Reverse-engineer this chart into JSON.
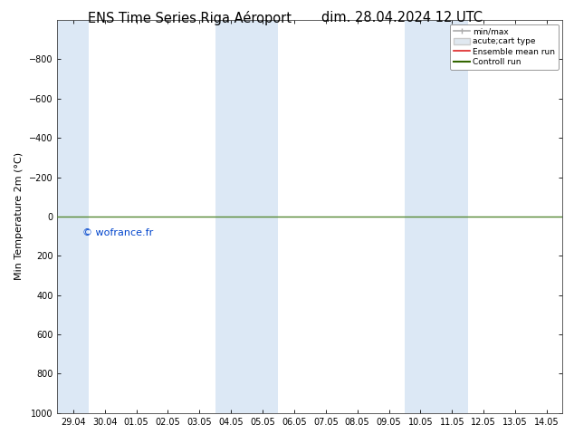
{
  "title_left": "ENS Time Series Riga Aéroport",
  "title_right": "dim. 28.04.2024 12 UTC",
  "ylabel": "Min Temperature 2m (°C)",
  "ylim_top": -1000,
  "ylim_bottom": 1000,
  "yticks": [
    -800,
    -600,
    -400,
    -200,
    0,
    200,
    400,
    600,
    800,
    1000
  ],
  "xtick_labels": [
    "29.04",
    "30.04",
    "01.05",
    "02.05",
    "03.05",
    "04.05",
    "05.05",
    "06.05",
    "07.05",
    "08.05",
    "09.05",
    "10.05",
    "11.05",
    "12.05",
    "13.05",
    "14.05"
  ],
  "xtick_positions": [
    0,
    1,
    2,
    3,
    4,
    5,
    6,
    7,
    8,
    9,
    10,
    11,
    12,
    13,
    14,
    15
  ],
  "xlim": [
    0,
    15
  ],
  "background_color": "#ffffff",
  "plot_bg_color": "#ffffff",
  "blue_band_ranges": [
    [
      -0.5,
      0.5
    ],
    [
      4.5,
      6.5
    ],
    [
      10.5,
      12.5
    ]
  ],
  "blue_band_color": "#dce8f5",
  "green_line_color": "#558833",
  "green_line_y": 0,
  "copyright_text": "© wofrance.fr",
  "copyright_color": "#0044cc",
  "legend_minmax_color": "#aaaaaa",
  "legend_acute_color": "#cccccc",
  "legend_ensemble_color": "#dd2222",
  "legend_control_color": "#336600",
  "title_fontsize": 10.5,
  "tick_fontsize": 7,
  "ylabel_fontsize": 8
}
